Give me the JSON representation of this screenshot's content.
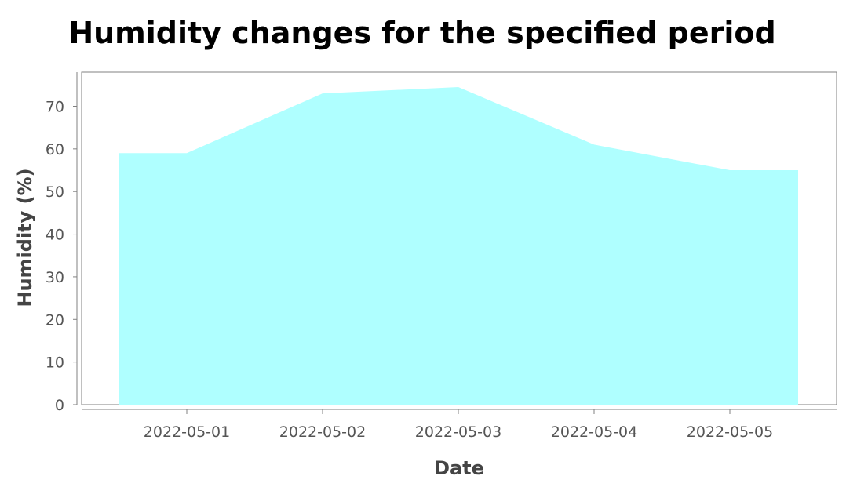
{
  "chart_data": {
    "type": "area",
    "title": "Humidity changes for the specified period",
    "xlabel": "Date",
    "ylabel": "Humidity (%)",
    "categories": [
      "2022-05-01",
      "2022-05-02",
      "2022-05-03",
      "2022-05-04",
      "2022-05-05"
    ],
    "series": [
      {
        "values": [
          59,
          73,
          74.5,
          61,
          55
        ],
        "color": "#AFFFFF"
      }
    ],
    "ylim": [
      0,
      78
    ],
    "yticks": [
      0,
      10,
      20,
      30,
      40,
      50,
      60,
      70
    ],
    "grid": false,
    "legend": "none"
  }
}
